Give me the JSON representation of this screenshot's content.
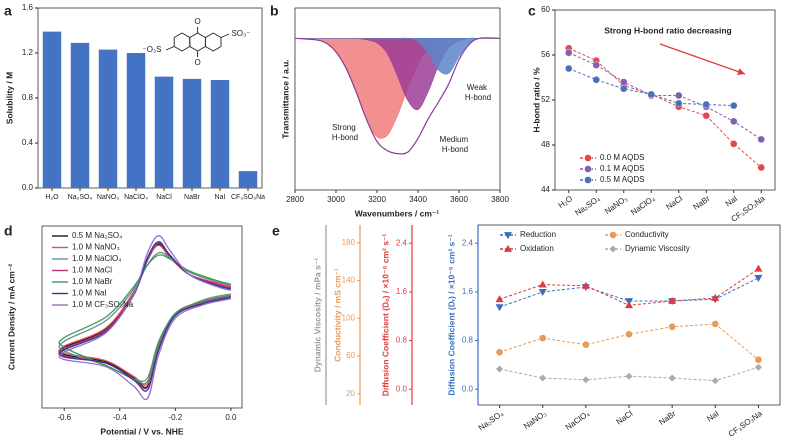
{
  "chart_data": [
    {
      "type": "bar",
      "panel_label": "a",
      "y_label": "Solubility / M",
      "categories": [
        "H₂O",
        "Na₂SO₄",
        "NaNO₃",
        "NaClO₄",
        "NaCl",
        "NaBr",
        "NaI",
        "CF₃SO₃Na"
      ],
      "values": [
        1.39,
        1.29,
        1.23,
        1.2,
        0.99,
        0.97,
        0.96,
        0.15
      ],
      "color": "#4472c4",
      "ylim": [
        0,
        1.6
      ],
      "yticks": [
        {
          "value": 0,
          "label": "0.0"
        },
        0.4,
        0.8,
        1.2,
        1.6
      ],
      "annotations": [
        "⁻O₃S",
        "SO₃⁻",
        "O",
        "O"
      ]
    },
    {
      "type": "area",
      "panel_label": "b",
      "x_label": "Wavenumbers / cm⁻¹",
      "y_label": "Transmittance / a.u.",
      "x": [
        2800,
        2900,
        2950,
        3000,
        3050,
        3100,
        3150,
        3200,
        3250,
        3300,
        3350,
        3400,
        3450,
        3500,
        3550,
        3600,
        3650,
        3700,
        3800
      ],
      "xlim": [
        2800,
        3800
      ],
      "xticks": [
        2800,
        3000,
        3200,
        3400,
        3600,
        3800
      ],
      "ylim": [
        0,
        1.2
      ],
      "smooth": true,
      "series": [
        {
          "name": "Strong H-bond",
          "color": "#f07c7c",
          "values": [
            1,
            0.99,
            0.97,
            0.91,
            0.8,
            0.64,
            0.46,
            0.35,
            0.36,
            0.49,
            0.67,
            0.83,
            0.93,
            0.97,
            0.99,
            1,
            1,
            1,
            1
          ]
        },
        {
          "name": "Medium H-bond",
          "color": "#9c3d96",
          "values": [
            1,
            1,
            1,
            1,
            1,
            1,
            0.99,
            0.97,
            0.9,
            0.75,
            0.59,
            0.53,
            0.65,
            0.82,
            0.94,
            0.98,
            1,
            1,
            1
          ]
        },
        {
          "name": "Weak H-bond",
          "color": "#5a86c8",
          "values": [
            1,
            1,
            1,
            1,
            1,
            1,
            1,
            1,
            1,
            1,
            1,
            0.98,
            0.9,
            0.79,
            0.77,
            0.88,
            0.97,
            1,
            1
          ]
        },
        {
          "color": "#8b3a9b",
          "values": [
            1,
            0.99,
            0.97,
            0.91,
            0.8,
            0.64,
            0.46,
            0.32,
            0.26,
            0.24,
            0.25,
            0.34,
            0.47,
            0.58,
            0.7,
            0.86,
            0.96,
            1,
            1
          ]
        }
      ]
    },
    {
      "type": "line",
      "panel_label": "c",
      "y_label": "H-bond ratio / %",
      "annotation": "Strong H-bond ratio decreasing",
      "categories": [
        "H₂O",
        "Na₂SO₄",
        "NaNO₃",
        "NaClO₄",
        "NaCl",
        "NaBr",
        "NaI",
        "CF₃SO₃Na"
      ],
      "ylim": [
        44,
        60
      ],
      "yticks": [
        44,
        48,
        52,
        56,
        60
      ],
      "legend": "lower left",
      "line_style": "dashed",
      "series": [
        {
          "name": "0.0 M AQDS",
          "color": "#e04a4a",
          "marker": "circle",
          "values": [
            56.6,
            55.5,
            53.3,
            52.5,
            51.4,
            50.6,
            48.1,
            46.0
          ]
        },
        {
          "name": "0.1 M AQDS",
          "color": "#8060b0",
          "marker": "circle",
          "values": [
            56.2,
            55.1,
            53.6,
            52.4,
            52.4,
            51.4,
            50.1,
            48.5
          ]
        },
        {
          "name": "0.5 M AQDS",
          "color": "#4a70b8",
          "marker": "circle",
          "values": [
            54.8,
            53.8,
            53.0,
            52.5,
            51.7,
            51.6,
            51.5,
            null
          ]
        }
      ]
    },
    {
      "type": "line",
      "panel_label": "d",
      "x_label": "Potential / V vs. NHE",
      "y_label": "Current Density / mA cm⁻²",
      "x": [
        0,
        -0.1,
        -0.2,
        -0.26,
        -0.3,
        -0.35,
        -0.45,
        -0.6,
        -0.6,
        -0.45,
        -0.35,
        -0.3,
        -0.26,
        -0.22,
        -0.15,
        -0.05,
        0
      ],
      "xlim": [
        -0.68,
        0.04
      ],
      "xticks": [
        -0.6,
        -0.4,
        -0.2,
        {
          "value": 0,
          "label": "0.0"
        }
      ],
      "ylim": [
        -0.8,
        0.7
      ],
      "smooth": true,
      "legend": "upper left",
      "series": [
        {
          "name": "0.5 M Na₂SO₄",
          "color": "#1a1a1a",
          "values": [
            0.12,
            0.07,
            -0.03,
            -0.3,
            -0.62,
            -0.55,
            -0.42,
            -0.36,
            -0.3,
            -0.15,
            0.15,
            0.42,
            0.55,
            0.45,
            0.3,
            0.22,
            0.19
          ]
        },
        {
          "name": "1.0 M NaNO₃",
          "color": "#e8504f",
          "values": [
            0.13,
            0.08,
            -0.02,
            -0.28,
            -0.6,
            -0.54,
            -0.41,
            -0.35,
            -0.29,
            -0.14,
            0.16,
            0.43,
            0.54,
            0.44,
            0.3,
            0.23,
            0.2
          ]
        },
        {
          "name": "1.0 M NaClO₄",
          "color": "#6b8e8e",
          "values": [
            0.14,
            0.09,
            -0.03,
            -0.25,
            -0.55,
            -0.56,
            -0.45,
            -0.33,
            -0.25,
            -0.08,
            0.18,
            0.38,
            0.48,
            0.44,
            0.32,
            0.24,
            0.21
          ]
        },
        {
          "name": "1.0 M NaCl",
          "color": "#c0307a",
          "values": [
            0.12,
            0.07,
            -0.03,
            -0.31,
            -0.63,
            -0.56,
            -0.43,
            -0.37,
            -0.31,
            -0.16,
            0.14,
            0.42,
            0.56,
            0.46,
            0.3,
            0.22,
            0.19
          ]
        },
        {
          "name": "1.0 M NaBr",
          "color": "#3a9a5a",
          "values": [
            0.13,
            0.08,
            -0.02,
            -0.27,
            -0.58,
            -0.56,
            -0.45,
            -0.3,
            -0.22,
            -0.05,
            0.2,
            0.38,
            0.46,
            0.43,
            0.33,
            0.25,
            0.22
          ]
        },
        {
          "name": "1.0 M NaI",
          "color": "#2b3a9a",
          "values": [
            0.11,
            0.06,
            -0.04,
            -0.32,
            -0.65,
            -0.57,
            -0.43,
            -0.38,
            -0.32,
            -0.17,
            0.13,
            0.44,
            0.57,
            0.46,
            0.3,
            0.21,
            0.18
          ]
        },
        {
          "name": "1.0 M CF₃SO₃Na",
          "color": "#9b6bc4",
          "values": [
            0.1,
            0.05,
            -0.06,
            -0.36,
            -0.72,
            -0.62,
            -0.46,
            -0.4,
            -0.34,
            -0.18,
            0.14,
            0.48,
            0.62,
            0.5,
            0.3,
            0.2,
            0.17
          ]
        }
      ]
    },
    {
      "type": "line",
      "panel_label": "e",
      "categories": [
        "Na₂SO₄",
        "NaNO₃",
        "NaClO₄",
        "NaCl",
        "NaBr",
        "NaI",
        "CF₃SO₃Na"
      ],
      "y_label": "Diffusion Coefficient (Dᵣ) / ×10⁻⁶ cm² s⁻¹",
      "y_color": "#3a6fc0",
      "ylim": [
        -0.26,
        2.7
      ],
      "yticks": [
        {
          "value": 0,
          "label": "0.0"
        },
        0.8,
        1.6,
        2.4
      ],
      "y2_label": "Diffusion Coefficient (Dₒ) / ×10⁻⁶ cm² s⁻¹",
      "y2_color": "#e03a3a",
      "y2lim": [
        -0.26,
        2.7
      ],
      "y2ticks": [
        {
          "value": 0,
          "label": "0.0"
        },
        0.8,
        1.6,
        2.4
      ],
      "y3_label": "Conductivity / mS cm⁻¹",
      "y3_color": "#eb9a55",
      "y3lim": [
        8,
        199
      ],
      "y3ticks": [
        20,
        60,
        100,
        140,
        180
      ],
      "y4_label": "Dynamic Viscosity / mPa s⁻¹",
      "y4_color": "#999999",
      "y4lim": [
        0,
        10
      ],
      "legend": "upper left",
      "line_style": "dashed",
      "series": [
        {
          "name": "Reduction",
          "color": "#3a6fc0",
          "marker": "triangle-down",
          "axis": "y",
          "values": [
            1.35,
            1.6,
            1.68,
            1.45,
            1.45,
            1.48,
            1.83
          ]
        },
        {
          "name": "Conductivity",
          "color": "#eb9a55",
          "marker": "circle",
          "axis": "y3",
          "values": [
            64,
            79,
            72,
            83,
            91,
            94,
            56
          ]
        },
        {
          "name": "Oxidation",
          "color": "#e03a3a",
          "marker": "triangle-up",
          "axis": "y2",
          "values": [
            1.48,
            1.72,
            1.7,
            1.38,
            1.45,
            1.5,
            1.98
          ]
        },
        {
          "name": "Dynamic Viscosity",
          "color": "#aaaaaa",
          "marker": "diamond",
          "axis": "y4",
          "values": [
            2,
            1.5,
            1.4,
            1.6,
            1.5,
            1.35,
            2.1
          ]
        }
      ]
    }
  ]
}
